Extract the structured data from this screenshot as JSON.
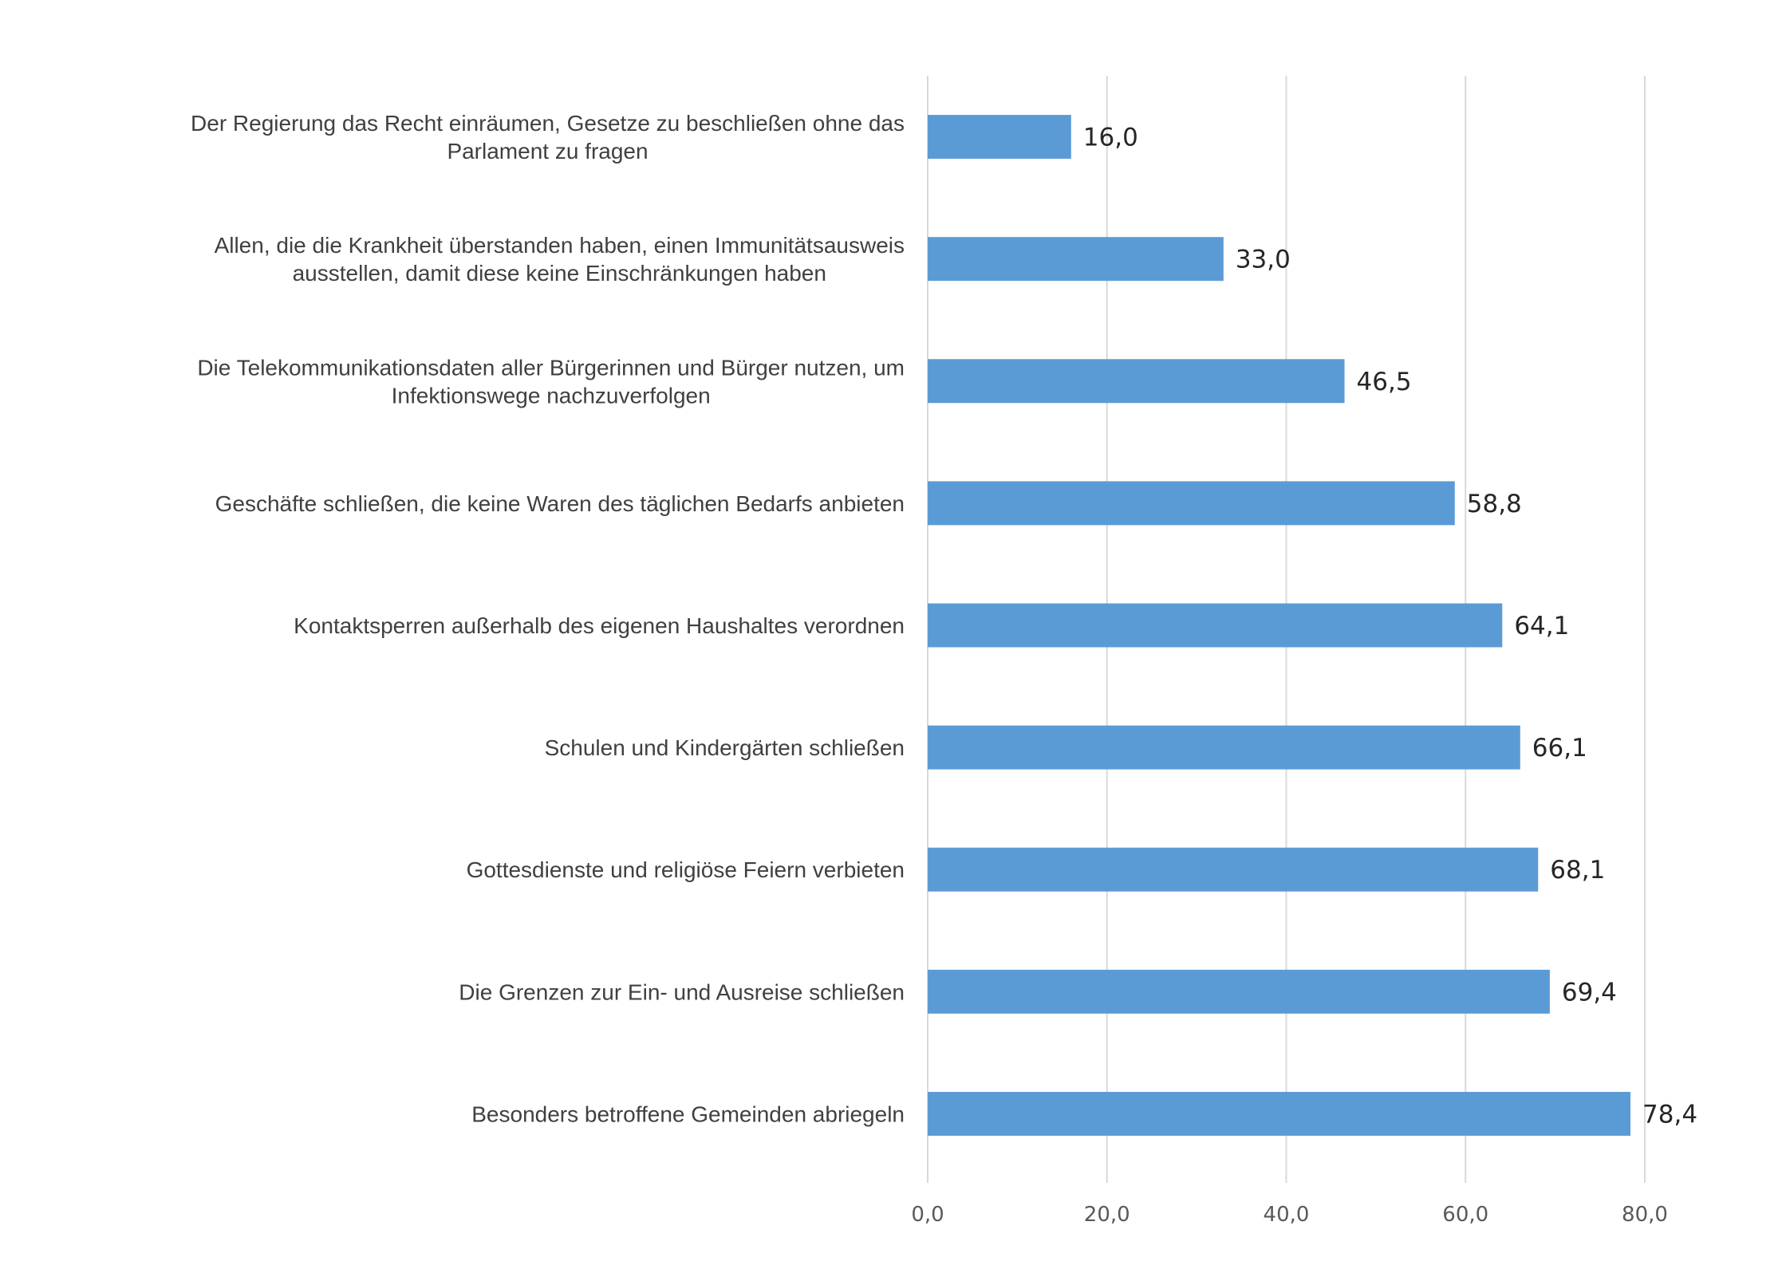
{
  "chart_data": {
    "type": "bar",
    "orientation": "horizontal",
    "categories": [
      [
        "Der Regierung das Recht einräumen, Gesetze zu beschließen ohne das",
        "Parlament zu fragen"
      ],
      [
        "Allen, die die Krankheit überstanden haben, einen Immunitätsausweis",
        "ausstellen, damit diese keine Einschränkungen haben"
      ],
      [
        "Die Telekommunikationsdaten aller Bürgerinnen und Bürger nutzen, um",
        "Infektionswege nachzuverfolgen"
      ],
      [
        "Geschäfte schließen, die keine Waren des täglichen Bedarfs anbieten"
      ],
      [
        "Kontaktsperren außerhalb des eigenen Haushaltes verordnen"
      ],
      [
        "Schulen und Kindergärten schließen"
      ],
      [
        "Gottesdienste und religiöse Feiern verbieten"
      ],
      [
        "Die Grenzen zur Ein- und Ausreise schließen"
      ],
      [
        "Besonders betroffene Gemeinden abriegeln"
      ]
    ],
    "values": [
      16.0,
      33.0,
      46.5,
      58.8,
      64.1,
      66.1,
      68.1,
      69.4,
      78.4
    ],
    "value_labels": [
      "16,0",
      "33,0",
      "46,5",
      "58,8",
      "64,1",
      "66,1",
      "68,1",
      "69,4",
      "78,4"
    ],
    "xlim": [
      0,
      80
    ],
    "x_ticks": [
      0,
      20,
      40,
      60,
      80
    ],
    "x_tick_labels": [
      "0,0",
      "20,0",
      "40,0",
      "60,0",
      "80,0"
    ],
    "title": "",
    "xlabel": "",
    "ylabel": "",
    "grid": true,
    "bar_color": "#5b9bd5"
  }
}
